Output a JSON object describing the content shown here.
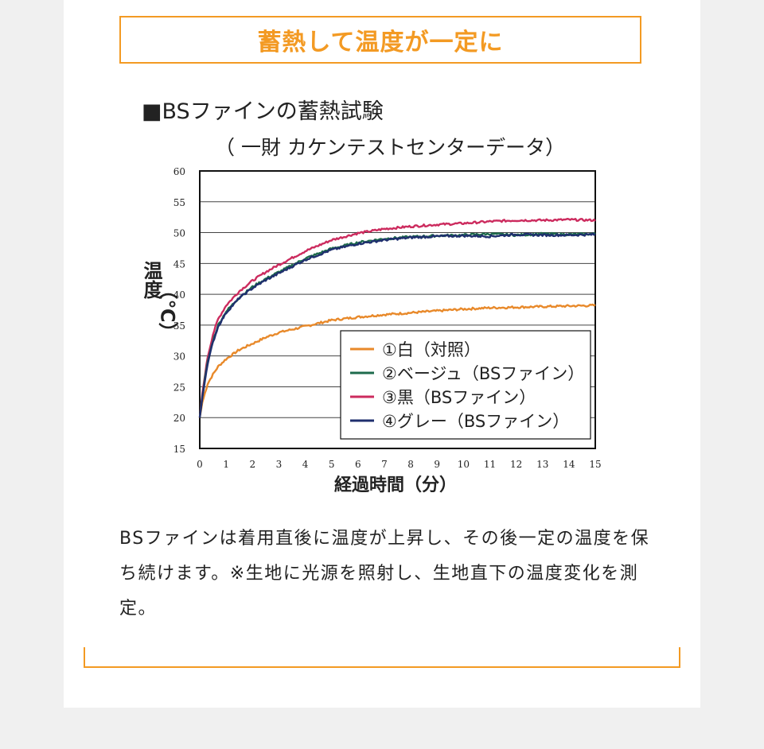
{
  "headline": "蓄熱して温度が一定に",
  "description": "BSファインは着用直後に温度が上昇し、その後一定の温度を保ち続けます。※生地に光源を照射し、生地直下の温度変化を測定。",
  "chart_data": {
    "type": "line",
    "title": "■BSファインの蓄熱試験",
    "subtitle": "（ 一財 カケンテストセンターデータ）",
    "xlabel": "経過時間（分）",
    "ylabel_main": "温度",
    "ylabel_unit": "（℃）",
    "xlim": [
      0,
      15
    ],
    "ylim": [
      15,
      60
    ],
    "xticks": [
      "0",
      "1",
      "2",
      "3",
      "4",
      "5",
      "6",
      "7",
      "8",
      "9",
      "10",
      "11",
      "12",
      "13",
      "14",
      "15"
    ],
    "yticks": [
      "15",
      "20",
      "25",
      "30",
      "35",
      "40",
      "45",
      "50",
      "55",
      "60"
    ],
    "grid": true,
    "legend_position": "bottom-right",
    "series": [
      {
        "name": "①白（対照）",
        "color": "#e8892a",
        "x": [
          0,
          0.1,
          0.2,
          0.3,
          0.5,
          0.7,
          1,
          1.5,
          2,
          2.5,
          3,
          4,
          5,
          6,
          7,
          8,
          9,
          10,
          11,
          12,
          13,
          14,
          15
        ],
        "y": [
          20,
          22.5,
          24,
          25.5,
          27,
          28.3,
          29.5,
          31,
          32,
          33,
          33.8,
          34.8,
          35.8,
          36.3,
          36.7,
          37,
          37.3,
          37.6,
          37.8,
          37.9,
          38,
          38.1,
          38.2
        ]
      },
      {
        "name": "②ベージュ（BSファイン）",
        "color": "#1e6b4c",
        "x": [
          0,
          0.1,
          0.2,
          0.3,
          0.5,
          0.7,
          1,
          1.5,
          2,
          2.5,
          3,
          4,
          5,
          6,
          7,
          8,
          9,
          10,
          11,
          12,
          13,
          14,
          15
        ],
        "y": [
          20,
          23.5,
          26.5,
          29,
          32.5,
          35,
          37.2,
          39.5,
          41.2,
          42.5,
          43.6,
          45.8,
          47.4,
          48.4,
          49,
          49.3,
          49.5,
          49.6,
          49.8,
          49.6,
          49.8,
          49.7,
          49.8
        ]
      },
      {
        "name": "③黒（BSファイン）",
        "color": "#cc2b5e",
        "x": [
          0,
          0.1,
          0.2,
          0.3,
          0.5,
          0.7,
          1,
          1.5,
          2,
          2.5,
          3,
          4,
          5,
          6,
          7,
          8,
          9,
          10,
          11,
          12,
          13,
          14,
          15
        ],
        "y": [
          20,
          24,
          27,
          29.8,
          33.5,
          36,
          38.2,
          40.5,
          42.2,
          43.6,
          44.8,
          47,
          48.8,
          49.9,
          50.6,
          51,
          51.3,
          51.5,
          51.8,
          52,
          52,
          52.1,
          52
        ]
      },
      {
        "name": "④グレー（BSファイン）",
        "color": "#1f2f6e",
        "x": [
          0,
          0.1,
          0.2,
          0.3,
          0.5,
          0.7,
          1,
          1.5,
          2,
          2.5,
          3,
          4,
          5,
          6,
          7,
          8,
          9,
          10,
          11,
          12,
          13,
          14,
          15
        ],
        "y": [
          20,
          23.3,
          26.2,
          28.8,
          32.2,
          34.8,
          37,
          39.4,
          41,
          42.3,
          43.4,
          45.6,
          47.2,
          48.2,
          48.8,
          49.2,
          49.4,
          49.5,
          49.4,
          49.7,
          49.6,
          49.6,
          49.7
        ]
      }
    ]
  }
}
